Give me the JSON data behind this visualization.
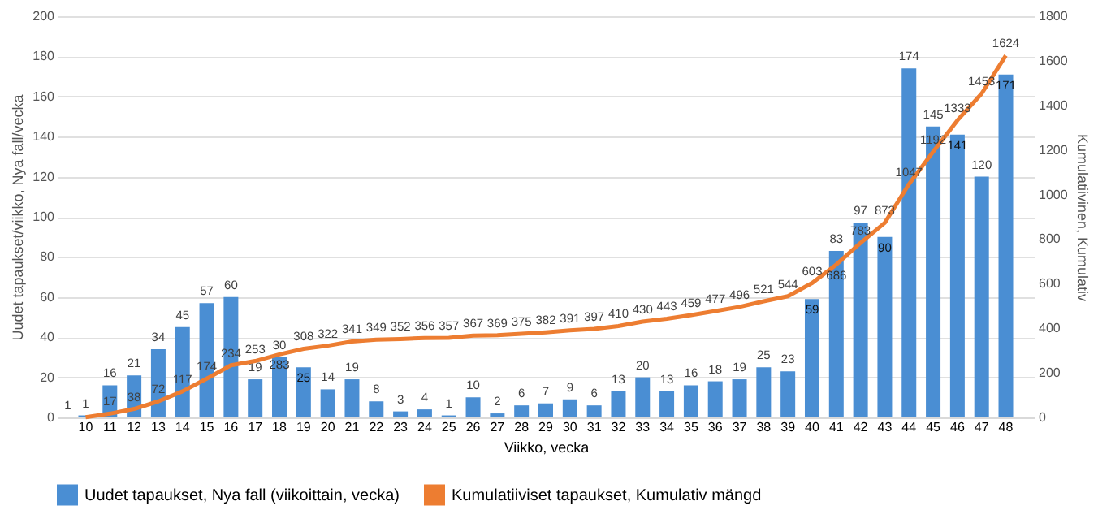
{
  "chart_data": {
    "type": "bar",
    "xlabel": "Viikko, vecka",
    "ylabel": "Uudet tapaukset/viikko, Nya fall/vecka",
    "y2label": "Kumulatiivinen, Kumulativ",
    "categories": [
      "10",
      "11",
      "12",
      "13",
      "14",
      "15",
      "16",
      "17",
      "18",
      "19",
      "20",
      "21",
      "22",
      "23",
      "24",
      "25",
      "26",
      "27",
      "28",
      "29",
      "30",
      "31",
      "32",
      "33",
      "34",
      "35",
      "36",
      "37",
      "38",
      "39",
      "40",
      "41",
      "42",
      "43",
      "44",
      "45",
      "46",
      "47",
      "48"
    ],
    "series": [
      {
        "name": "Uudet tapaukset, Nya fall (viikoittain, vecka)",
        "color": "#4a8ed3",
        "values": [
          1,
          16,
          21,
          34,
          45,
          57,
          60,
          19,
          30,
          25,
          14,
          19,
          8,
          3,
          4,
          1,
          10,
          2,
          6,
          7,
          9,
          6,
          13,
          20,
          13,
          16,
          18,
          19,
          25,
          23,
          59,
          83,
          97,
          90,
          174,
          145,
          141,
          120,
          171
        ]
      },
      {
        "name": "Kumulatiiviset tapaukset, Kumulativ mängd",
        "type": "line",
        "axis": "y2",
        "color": "#ed7d31",
        "values": [
          1,
          17,
          38,
          72,
          117,
          174,
          234,
          253,
          283,
          308,
          322,
          341,
          349,
          352,
          356,
          357,
          367,
          369,
          375,
          382,
          391,
          397,
          410,
          430,
          443,
          459,
          477,
          496,
          521,
          544,
          603,
          686,
          783,
          873,
          1047,
          1192,
          1333,
          1453,
          1624
        ]
      }
    ],
    "ylim": [
      0,
      200
    ],
    "yticks": [
      0,
      20,
      40,
      60,
      80,
      100,
      120,
      140,
      160,
      180,
      200
    ],
    "y2lim": [
      0,
      1800
    ],
    "y2ticks": [
      0,
      200,
      400,
      600,
      800,
      1000,
      1200,
      1400,
      1600,
      1800
    ],
    "data_labels": true,
    "grid": "y",
    "legend": "bottom",
    "marker": "none",
    "line_style": "solid"
  }
}
